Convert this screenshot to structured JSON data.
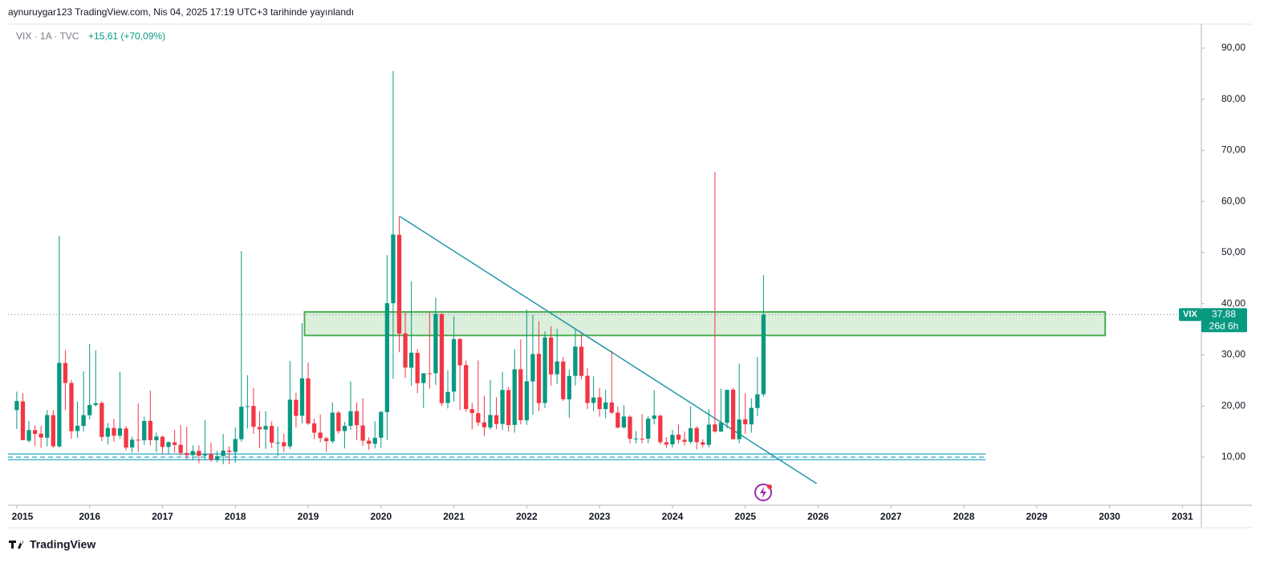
{
  "header": "aynuruygar123 TradingView.com, Nis 04, 2025 17:19 UTC+3 tarihinde yayınlandı",
  "footer": "TradingView",
  "chart_data": {
    "type": "candlestick",
    "symbol": "VIX · 1A · TVC",
    "change": "+15,61 (+70,09%)",
    "ticker": "VIX",
    "first_year": 2015,
    "up_color": "#089981",
    "down_color": "#f23645",
    "open": [
      19.2,
      20.9,
      13.2,
      15.3,
      14.6,
      13.8,
      18.2,
      12.1,
      28.4,
      24.5,
      15.1,
      16.1,
      18.2,
      20.2,
      20.6,
      14.0,
      15.7,
      14.2,
      15.6,
      11.9,
      13.4,
      13.3,
      17.1,
      13.3,
      14.0,
      12.0,
      12.9,
      12.4,
      10.8,
      10.4,
      11.2,
      10.3,
      10.6,
      9.5,
      10.2,
      11.3,
      11.0,
      13.5,
      19.9,
      20.0,
      15.9,
      15.4,
      16.1,
      12.8,
      12.9,
      12.1,
      21.2,
      18.1,
      25.4,
      16.6,
      14.8,
      13.7,
      13.1,
      18.7,
      15.1,
      16.1,
      19.0,
      16.2,
      13.2,
      12.6,
      13.8,
      18.8,
      40.1,
      53.5,
      34.2,
      27.5,
      30.4,
      24.5,
      26.4,
      26.4,
      38.0,
      20.6,
      22.8,
      33.1,
      28.0,
      19.4,
      18.6,
      16.8,
      15.8,
      18.2,
      16.5,
      23.1,
      16.3,
      27.2,
      17.2,
      24.8,
      30.2,
      20.6,
      33.4,
      26.2,
      28.7,
      21.3,
      25.9,
      31.6,
      25.9,
      20.6,
      21.7,
      19.4,
      20.7,
      18.7,
      15.8,
      17.9,
      13.6,
      13.6,
      13.6,
      17.5,
      18.1,
      12.9,
      12.5,
      14.4,
      13.4,
      13.0,
      15.7,
      12.9,
      12.4,
      16.4,
      15.0,
      16.7,
      23.2,
      13.5,
      17.4,
      16.4,
      19.6,
      22.3
    ],
    "high": [
      22.8,
      22.5,
      17.1,
      16.2,
      16.1,
      19.2,
      19.2,
      53.3,
      30.9,
      25.1,
      20.8,
      26.8,
      32.1,
      30.9,
      20.9,
      16.7,
      17.5,
      26.7,
      16.1,
      14.0,
      20.5,
      17.9,
      23.0,
      14.8,
      14.2,
      13.1,
      15.3,
      16.3,
      15.9,
      12.3,
      12.3,
      17.3,
      12.9,
      11.2,
      14.5,
      12.1,
      15.8,
      50.3,
      26.0,
      23.5,
      19.0,
      19.0,
      17.0,
      16.0,
      14.6,
      28.8,
      22.6,
      36.2,
      28.5,
      17.5,
      18.3,
      14.0,
      20.7,
      19.0,
      16.9,
      24.8,
      20.7,
      21.5,
      13.9,
      17.0,
      19.0,
      49.5,
      85.5,
      57.1,
      38.3,
      44.4,
      31.1,
      26.4,
      38.3,
      41.2,
      38.1,
      27.0,
      37.5,
      33.3,
      28.9,
      20.6,
      28.9,
      22.0,
      25.1,
      21.7,
      26.7,
      23.7,
      31.1,
      33.0,
      38.9,
      37.8,
      36.6,
      34.6,
      35.6,
      35.1,
      29.6,
      27.1,
      35.0,
      34.1,
      27.4,
      25.8,
      23.5,
      23.2,
      30.8,
      19.9,
      20.2,
      18.2,
      15.1,
      18.4,
      18.0,
      23.1,
      18.3,
      13.9,
      15.3,
      16.4,
      15.0,
      19.9,
      16.0,
      13.5,
      19.4,
      65.7,
      23.4,
      23.2,
      23.5,
      28.3,
      22.5,
      21.5,
      29.6,
      45.6
    ],
    "low": [
      15.5,
      13.3,
      12.9,
      12.2,
      11.8,
      12.1,
      11.8,
      11.8,
      19.2,
      13.6,
      13.8,
      15.0,
      17.4,
      19.9,
      13.1,
      12.5,
      13.0,
      13.6,
      11.3,
      10.9,
      11.0,
      12.4,
      12.3,
      11.0,
      10.6,
      10.6,
      10.9,
      10.3,
      9.6,
      9.4,
      8.8,
      9.5,
      9.1,
      9.0,
      8.6,
      8.6,
      8.9,
      13.0,
      15.6,
      14.6,
      11.8,
      11.6,
      11.8,
      10.2,
      11.0,
      11.6,
      15.8,
      16.6,
      16.3,
      13.5,
      12.9,
      11.0,
      12.7,
      14.6,
      11.7,
      15.3,
      13.3,
      12.2,
      11.4,
      11.7,
      11.8,
      13.4,
      25.3,
      30.5,
      25.5,
      24.0,
      22.5,
      19.6,
      23.4,
      24.1,
      20.0,
      19.5,
      20.9,
      19.2,
      18.9,
      15.4,
      16.1,
      14.1,
      15.4,
      15.5,
      15.3,
      15.0,
      14.8,
      16.4,
      16.3,
      18.3,
      19.0,
      19.6,
      24.0,
      24.3,
      21.0,
      17.7,
      24.0,
      25.2,
      19.4,
      19.0,
      17.9,
      17.6,
      18.4,
      15.6,
      15.6,
      12.7,
      12.7,
      12.7,
      12.7,
      16.4,
      12.5,
      11.8,
      11.9,
      12.6,
      12.3,
      12.6,
      11.5,
      11.9,
      11.9,
      14.8,
      14.9,
      15.6,
      14.1,
      12.7,
      14.6,
      14.8,
      18.0,
      21.8
    ],
    "close": [
      20.97,
      13.34,
      15.29,
      14.55,
      13.84,
      18.23,
      12.12,
      28.43,
      24.5,
      15.07,
      16.13,
      18.21,
      20.2,
      20.55,
      13.95,
      15.7,
      14.19,
      15.63,
      11.87,
      13.42,
      13.29,
      17.06,
      13.33,
      14.04,
      11.99,
      12.92,
      12.37,
      10.82,
      10.41,
      11.18,
      10.26,
      10.59,
      9.51,
      10.18,
      11.28,
      11.04,
      13.54,
      19.85,
      19.97,
      15.93,
      15.43,
      16.09,
      12.83,
      12.86,
      12.12,
      21.23,
      18.07,
      25.42,
      16.57,
      14.78,
      13.71,
      13.12,
      18.71,
      15.08,
      16.12,
      18.98,
      16.24,
      13.22,
      12.62,
      13.78,
      18.84,
      40.11,
      53.54,
      34.15,
      27.51,
      30.43,
      24.46,
      26.41,
      26.37,
      38.02,
      20.57,
      22.75,
      33.09,
      27.95,
      19.4,
      18.61,
      16.76,
      15.83,
      18.24,
      16.48,
      23.14,
      16.26,
      27.19,
      17.22,
      24.83,
      30.15,
      20.56,
      33.4,
      26.19,
      28.71,
      21.33,
      25.87,
      31.62,
      25.88,
      20.58,
      21.67,
      19.4,
      20.7,
      18.7,
      15.78,
      17.94,
      13.59,
      13.63,
      13.57,
      17.52,
      18.14,
      12.92,
      12.45,
      14.35,
      13.4,
      13.01,
      15.65,
      12.92,
      12.44,
      16.36,
      15.0,
      16.73,
      23.16,
      13.51,
      17.35,
      16.43,
      19.63,
      22.28,
      37.88
    ],
    "last_price": {
      "value": 37.88,
      "label": "37,88"
    },
    "countdown": "26d 6h",
    "xlim": [
      2014.88,
      2031.26
    ],
    "ylim": [
      0.59,
      94.7
    ],
    "xticks": [
      2015,
      2016,
      2017,
      2018,
      2019,
      2020,
      2021,
      2022,
      2023,
      2024,
      2025,
      2026,
      2027,
      2028,
      2029,
      2030,
      2031
    ],
    "yticks": [
      {
        "value": 10,
        "label": "10,00"
      },
      {
        "value": 20,
        "label": "20,00"
      },
      {
        "value": 30,
        "label": "30,00"
      },
      {
        "value": 40,
        "label": "40,00"
      },
      {
        "value": 50,
        "label": "50,00"
      },
      {
        "value": 60,
        "label": "60,00"
      },
      {
        "value": 70,
        "label": "70,00"
      },
      {
        "value": 80,
        "label": "80,00"
      },
      {
        "value": 90,
        "label": "90,00"
      }
    ],
    "zone": {
      "x0": 2018.95,
      "x1": 2029.94,
      "top": 38.4,
      "bottom": 33.8,
      "color": "#4caf50"
    },
    "trendline": {
      "x0": 2020.26,
      "y0": 57.06,
      "x1": 2025.98,
      "y1": 4.82,
      "color": "#2196a8"
    },
    "support": {
      "levels": [
        10.6,
        10.0,
        9.5
      ],
      "x1": 2028.3,
      "color": "#4bb4cf"
    }
  }
}
